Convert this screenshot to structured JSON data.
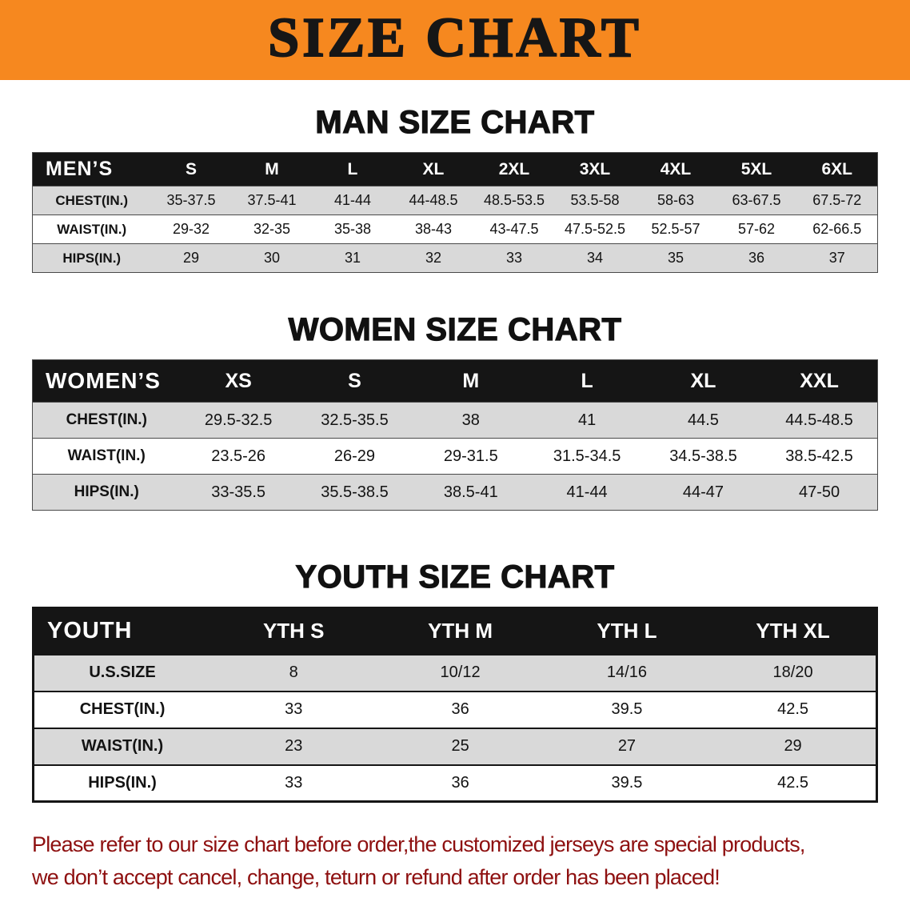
{
  "banner": {
    "title": "SIZE CHART",
    "bg_color": "#f6881f",
    "text_color": "#161616"
  },
  "sections": [
    {
      "heading": "MAN SIZE CHART",
      "table": {
        "header": [
          "MEN’S",
          "S",
          "M",
          "L",
          "XL",
          "2XL",
          "3XL",
          "4XL",
          "5XL",
          "6XL"
        ],
        "rows": [
          {
            "label": "CHEST(IN.)",
            "values": [
              "35-37.5",
              "37.5-41",
              "41-44",
              "44-48.5",
              "48.5-53.5",
              "53.5-58",
              "58-63",
              "63-67.5",
              "67.5-72"
            ]
          },
          {
            "label": "WAIST(IN.)",
            "values": [
              "29-32",
              "32-35",
              "35-38",
              "38-43",
              "43-47.5",
              "47.5-52.5",
              "52.5-57",
              "57-62",
              "62-66.5"
            ]
          },
          {
            "label": "HIPS(IN.)",
            "values": [
              "29",
              "30",
              "31",
              "32",
              "33",
              "34",
              "35",
              "36",
              "37"
            ]
          }
        ]
      }
    },
    {
      "heading": "WOMEN SIZE CHART",
      "table": {
        "header": [
          "WOMEN’S",
          "XS",
          "S",
          "M",
          "L",
          "XL",
          "XXL"
        ],
        "rows": [
          {
            "label": "CHEST(IN.)",
            "values": [
              "29.5-32.5",
              "32.5-35.5",
              "38",
              "41",
              "44.5",
              "44.5-48.5"
            ]
          },
          {
            "label": "WAIST(IN.)",
            "values": [
              "23.5-26",
              "26-29",
              "29-31.5",
              "31.5-34.5",
              "34.5-38.5",
              "38.5-42.5"
            ]
          },
          {
            "label": "HIPS(IN.)",
            "values": [
              "33-35.5",
              "35.5-38.5",
              "38.5-41",
              "41-44",
              "44-47",
              "47-50"
            ]
          }
        ]
      }
    },
    {
      "heading": "YOUTH SIZE CHART",
      "table": {
        "header": [
          "YOUTH",
          "YTH S",
          "YTH M",
          "YTH L",
          "YTH XL"
        ],
        "rows": [
          {
            "label": "U.S.SIZE",
            "values": [
              "8",
              "10/12",
              "14/16",
              "18/20"
            ]
          },
          {
            "label": "CHEST(IN.)",
            "values": [
              "33",
              "36",
              "39.5",
              "42.5"
            ]
          },
          {
            "label": "WAIST(IN.)",
            "values": [
              "23",
              "25",
              "27",
              "29"
            ]
          },
          {
            "label": "HIPS(IN.)",
            "values": [
              "33",
              "36",
              "39.5",
              "42.5"
            ]
          }
        ]
      }
    }
  ],
  "footer": {
    "lines": [
      "Please refer to our size chart before order,the customized jerseys are special products,",
      "we don’t accept cancel, change, teturn or refund after order has been placed!"
    ],
    "text_color": "#8e1010"
  }
}
